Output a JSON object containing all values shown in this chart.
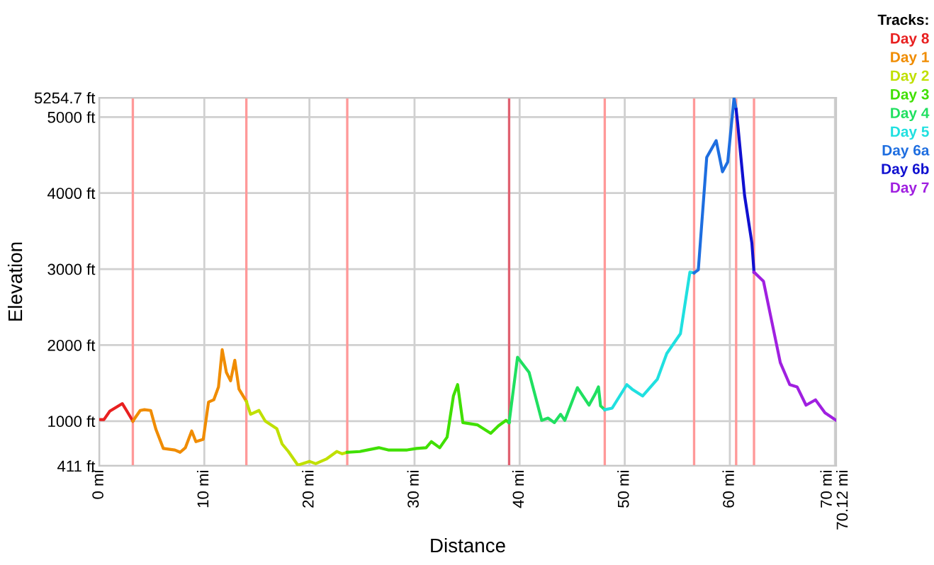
{
  "chart_data": {
    "type": "line",
    "xlabel": "Distance",
    "ylabel": "Elevation",
    "legend_title": "Tracks:",
    "legend": "top right",
    "grid": true,
    "marker": "none",
    "line_style": "solid",
    "xlim": [
      0,
      70.12
    ],
    "ylim": [
      411,
      5254.7
    ],
    "xticks": [
      {
        "value": 0,
        "label": "0 mi"
      },
      {
        "value": 10,
        "label": "10 mi"
      },
      {
        "value": 20,
        "label": "20 mi"
      },
      {
        "value": 30,
        "label": "30 mi"
      },
      {
        "value": 40,
        "label": "40 mi"
      },
      {
        "value": 50,
        "label": "50 mi"
      },
      {
        "value": 60,
        "label": "60 mi"
      },
      {
        "value": 70,
        "label": "70 mi"
      },
      {
        "value": 70.12,
        "label": "70.12 mi"
      }
    ],
    "yticks": [
      {
        "value": 411,
        "label": "411 ft"
      },
      {
        "value": 1000,
        "label": "1000 ft"
      },
      {
        "value": 2000,
        "label": "2000 ft"
      },
      {
        "value": 3000,
        "label": "3000 ft"
      },
      {
        "value": 4000,
        "label": "4000 ft"
      },
      {
        "value": 5000,
        "label": "5000 ft"
      },
      {
        "value": 5254.7,
        "label": "5254.7 ft"
      }
    ],
    "ref_lines": [
      {
        "axis": "x",
        "value": 3.2,
        "color": "#ff9999"
      },
      {
        "axis": "x",
        "value": 14.0,
        "color": "#ff9999"
      },
      {
        "axis": "x",
        "value": 23.6,
        "color": "#ff9999"
      },
      {
        "axis": "x",
        "value": 39.0,
        "color": "#e06070"
      },
      {
        "axis": "x",
        "value": 48.1,
        "color": "#ff9999"
      },
      {
        "axis": "x",
        "value": 56.6,
        "color": "#ff9999"
      },
      {
        "axis": "x",
        "value": 60.6,
        "color": "#ff9999"
      },
      {
        "axis": "x",
        "value": 62.3,
        "color": "#ff9999"
      }
    ],
    "series": [
      {
        "name": "Day 8",
        "color": "#e82020",
        "x": [
          0,
          0.45,
          1.0,
          2.2,
          2.6,
          3.2
        ],
        "values": [
          1020,
          1020,
          1130,
          1230,
          1140,
          1000
        ]
      },
      {
        "name": "Day 1",
        "color": "#f08c00",
        "x": [
          3.2,
          3.9,
          4.3,
          4.9,
          5.4,
          6.1,
          7.2,
          7.7,
          8.2,
          8.8,
          9.2,
          9.9,
          10.4,
          10.9,
          11.35,
          11.7,
          12.1,
          12.5,
          12.9,
          13.3,
          14.0
        ],
        "values": [
          1000,
          1140,
          1150,
          1140,
          890,
          640,
          620,
          590,
          650,
          870,
          730,
          760,
          1250,
          1280,
          1450,
          1940,
          1640,
          1530,
          1800,
          1420,
          1260
        ]
      },
      {
        "name": "Day 2",
        "color": "#c0e000",
        "x": [
          14.0,
          14.4,
          15.2,
          15.8,
          16.9,
          17.4,
          18.0,
          18.9,
          20.0,
          20.6,
          21.6,
          22.6,
          23.1,
          23.6
        ],
        "values": [
          1260,
          1090,
          1140,
          1000,
          900,
          700,
          600,
          420,
          470,
          440,
          500,
          600,
          570,
          590
        ]
      },
      {
        "name": "Day 3",
        "color": "#40e000",
        "x": [
          23.6,
          24.8,
          26.6,
          27.5,
          29.3,
          30.2,
          31.1,
          31.6,
          32.4,
          33.1,
          33.7,
          34.1,
          34.6,
          36.0,
          37.25,
          38.0,
          38.7,
          39.0
        ],
        "values": [
          590,
          600,
          650,
          620,
          620,
          640,
          650,
          730,
          650,
          790,
          1330,
          1480,
          980,
          950,
          840,
          940,
          1010,
          980
        ]
      },
      {
        "name": "Day 4",
        "color": "#20e060",
        "x": [
          39.0,
          39.8,
          40.9,
          42.1,
          42.7,
          43.3,
          43.9,
          44.3,
          45.5,
          46.6,
          47.2,
          47.5,
          47.7,
          48.1
        ],
        "values": [
          980,
          1840,
          1640,
          1010,
          1040,
          980,
          1090,
          1010,
          1440,
          1210,
          1360,
          1450,
          1200,
          1150
        ]
      },
      {
        "name": "Day 5",
        "color": "#20e0e0",
        "x": [
          48.1,
          48.8,
          50.2,
          50.7,
          51.7,
          53.1,
          54.0,
          55.3,
          56.2,
          56.6
        ],
        "values": [
          1150,
          1170,
          1480,
          1420,
          1330,
          1550,
          1890,
          2150,
          2960,
          2950
        ]
      },
      {
        "name": "Day 6a",
        "color": "#1e6ee0",
        "x": [
          56.6,
          57.0,
          57.8,
          58.7,
          59.3,
          59.8,
          60.4,
          60.6
        ],
        "values": [
          2950,
          2990,
          4470,
          4690,
          4280,
          4410,
          5250,
          5100
        ]
      },
      {
        "name": "Day 6b",
        "color": "#1010d0",
        "x": [
          60.6,
          60.75,
          61.4,
          62.1,
          62.3
        ],
        "values": [
          5100,
          4910,
          3970,
          3340,
          2960
        ]
      },
      {
        "name": "Day 7",
        "color": "#a020e0",
        "x": [
          62.3,
          63.2,
          63.9,
          64.8,
          65.7,
          66.4,
          67.25,
          68.15,
          69.05,
          70.12
        ],
        "values": [
          2960,
          2840,
          2370,
          1770,
          1480,
          1450,
          1210,
          1280,
          1110,
          1010
        ]
      }
    ]
  }
}
